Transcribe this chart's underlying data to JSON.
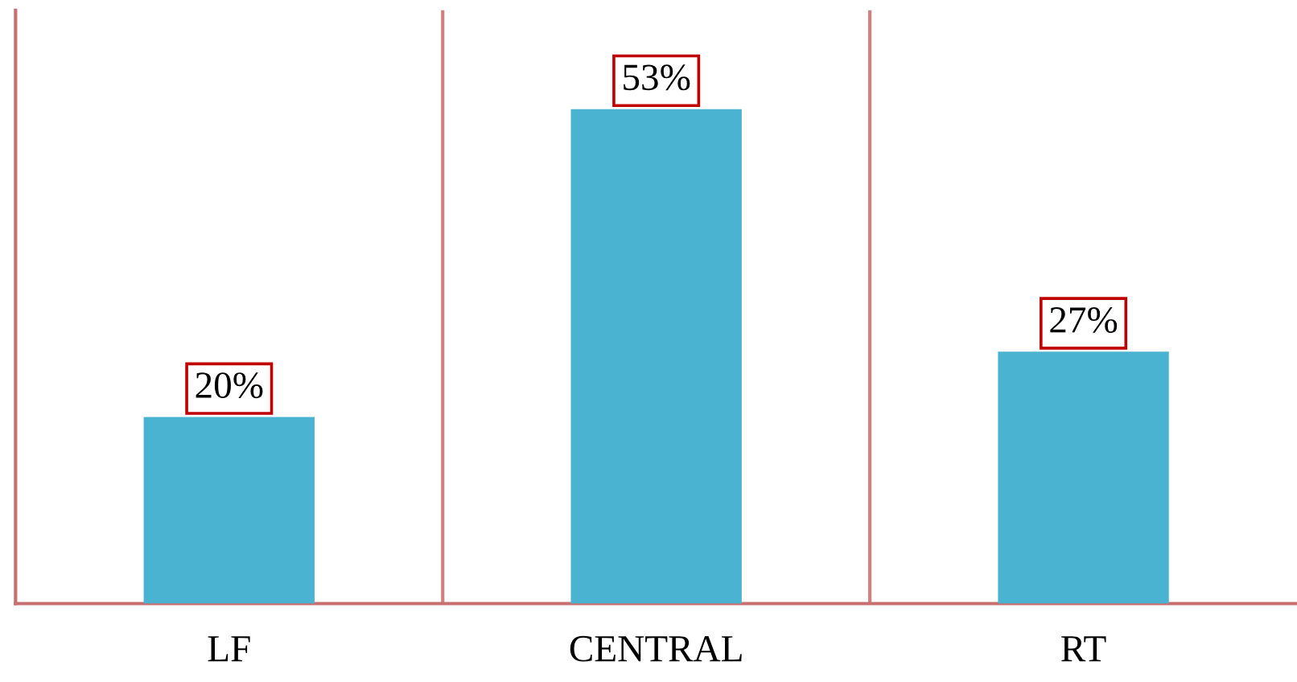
{
  "chart_data": {
    "type": "bar",
    "categories": [
      "LF",
      "CENTRAL",
      "RT"
    ],
    "values": [
      20,
      53,
      27
    ],
    "value_labels": [
      "20%",
      "53%",
      "27%"
    ],
    "color": "#4ab3d1",
    "grid": "x",
    "tick_labels": "x",
    "legend": false
  }
}
